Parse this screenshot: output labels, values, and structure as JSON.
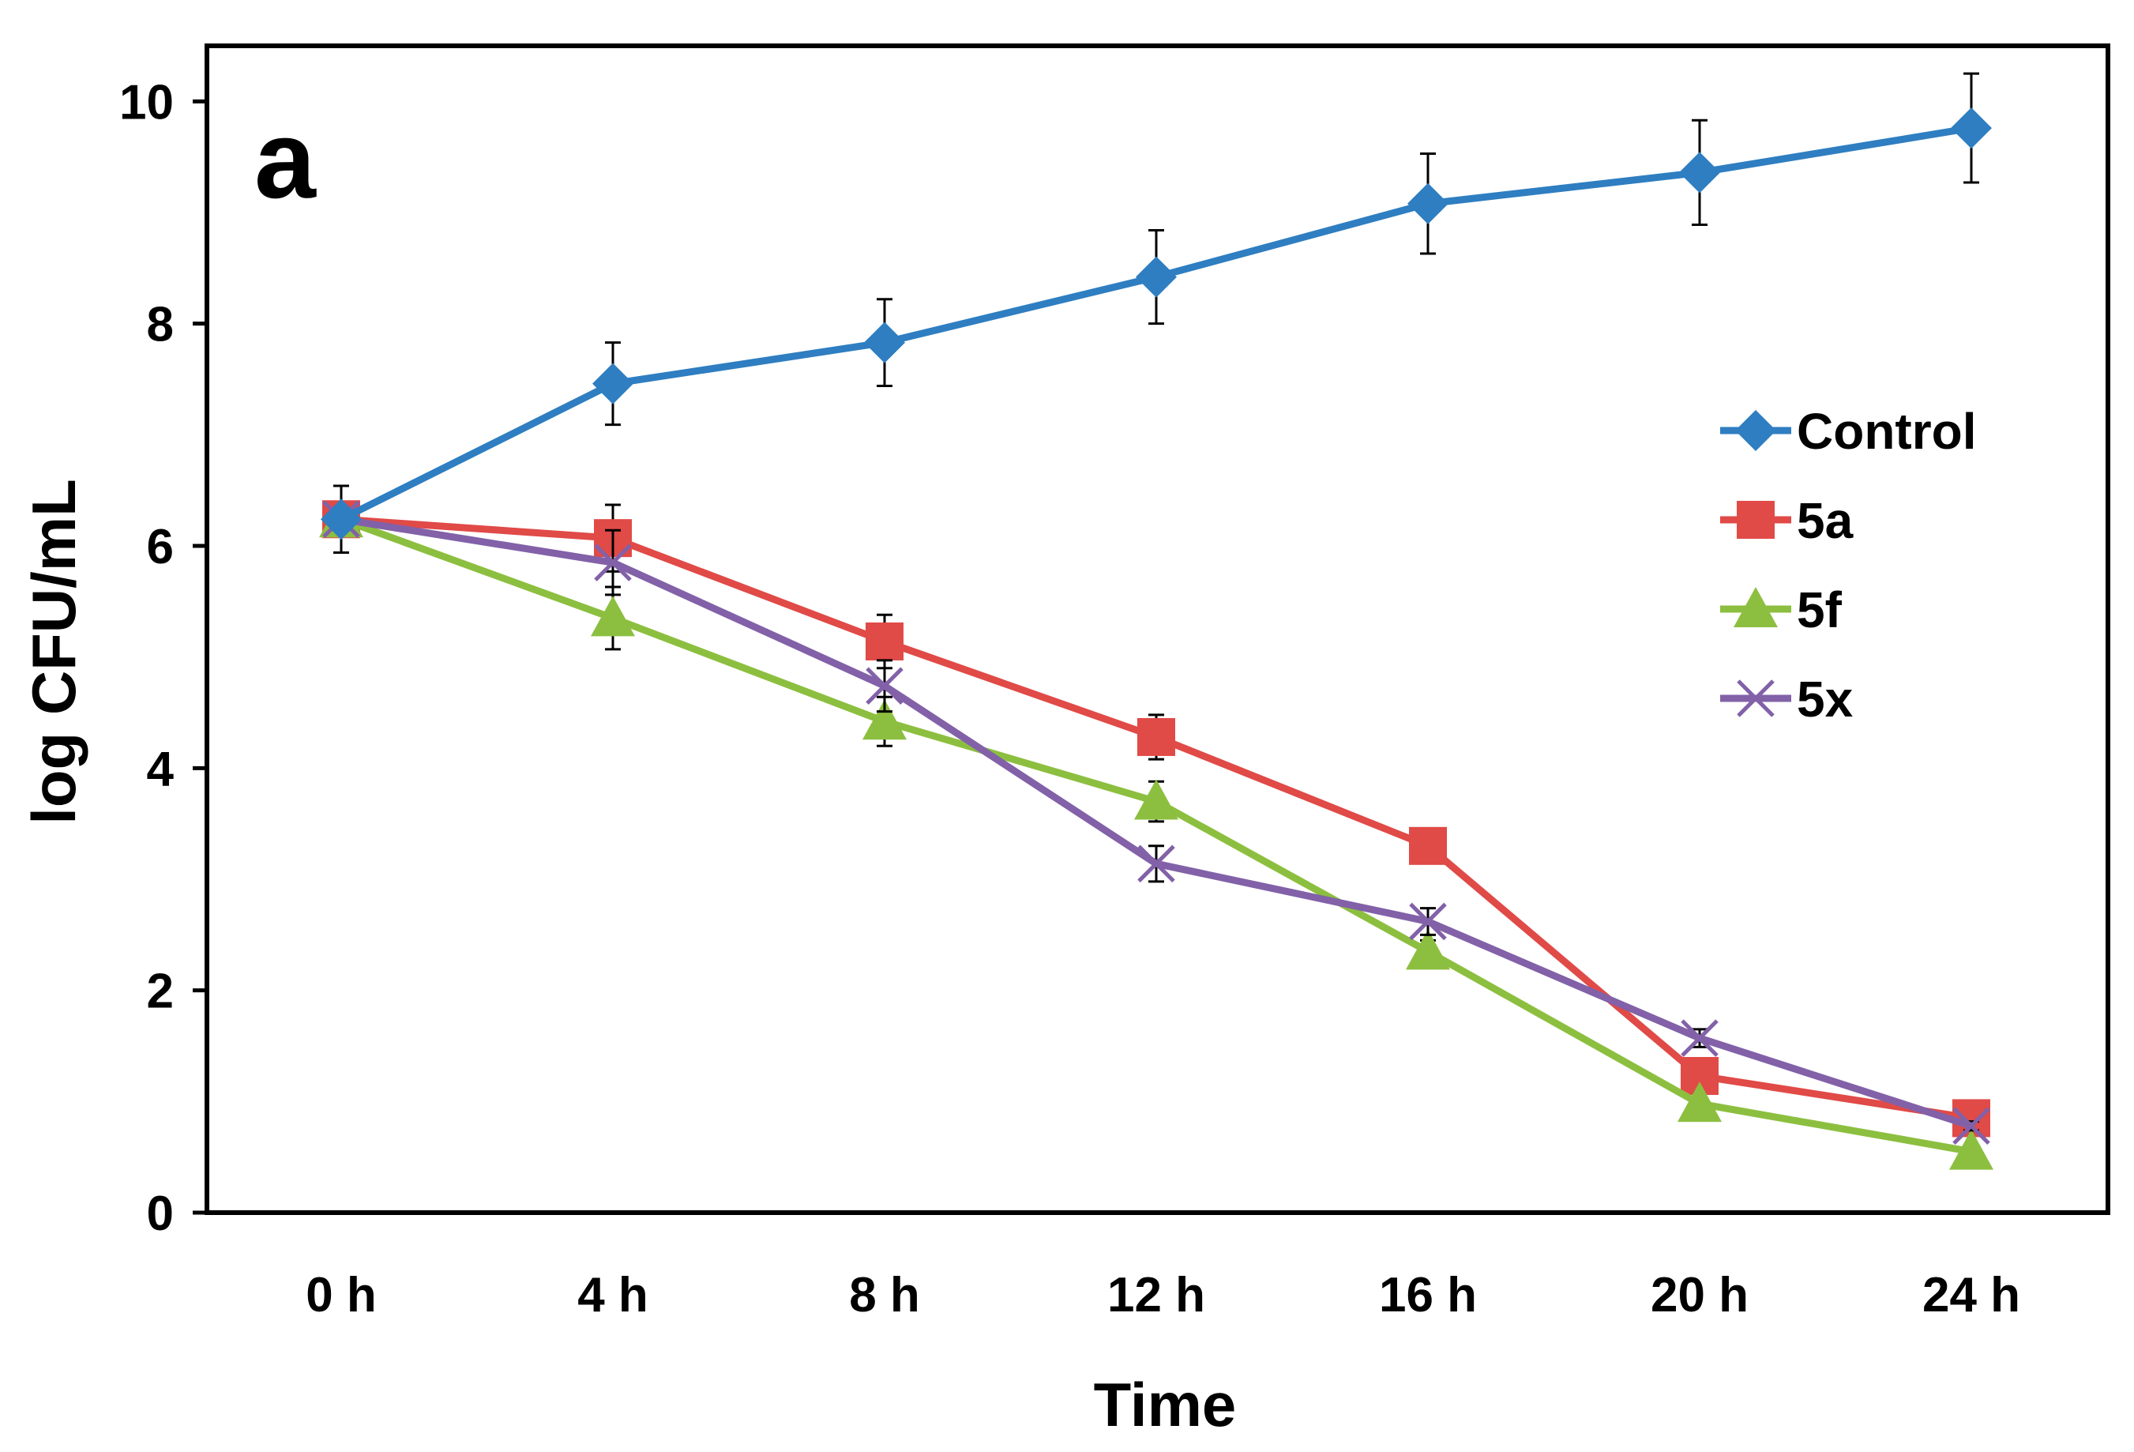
{
  "chart_data": {
    "type": "line",
    "panel_label": "a",
    "xlabel": "Time",
    "ylabel": "log CFU/mL",
    "categories": [
      "0 h",
      "4 h",
      "8 h",
      "12 h",
      "16 h",
      "20 h",
      "24 h"
    ],
    "ylim": [
      0,
      10.5
    ],
    "yticks": [
      "0",
      "2",
      "4",
      "6",
      "8",
      "10"
    ],
    "ytick_values": [
      0,
      2,
      4,
      6,
      8,
      10
    ],
    "grid": false,
    "error_bars": true,
    "legend_position": "right",
    "series": [
      {
        "name": "Control",
        "marker": "diamond",
        "color": "#2E7EC1",
        "values": [
          6.24,
          7.46,
          7.83,
          8.42,
          9.08,
          9.36,
          9.76
        ],
        "errors": [
          0.3,
          0.37,
          0.39,
          0.42,
          0.45,
          0.47,
          0.49
        ]
      },
      {
        "name": "5a",
        "marker": "square",
        "color": "#E04A47",
        "values": [
          6.24,
          6.07,
          5.14,
          4.28,
          3.3,
          1.23,
          0.85
        ],
        "errors": [
          0.3,
          0.3,
          0.24,
          0.2,
          0.12,
          0.06,
          0.04
        ]
      },
      {
        "name": "5f",
        "marker": "triangle",
        "color": "#8CBF3F",
        "values": [
          6.24,
          5.35,
          4.42,
          3.7,
          2.35,
          0.98,
          0.55
        ],
        "errors": [
          0.3,
          0.28,
          0.22,
          0.18,
          0.1,
          0.05,
          0.03
        ]
      },
      {
        "name": "5x",
        "marker": "x",
        "color": "#8261A8",
        "values": [
          6.24,
          5.85,
          4.74,
          3.14,
          2.62,
          1.57,
          0.78
        ],
        "errors": [
          0.3,
          0.29,
          0.23,
          0.16,
          0.12,
          0.08,
          0.04
        ]
      }
    ]
  }
}
